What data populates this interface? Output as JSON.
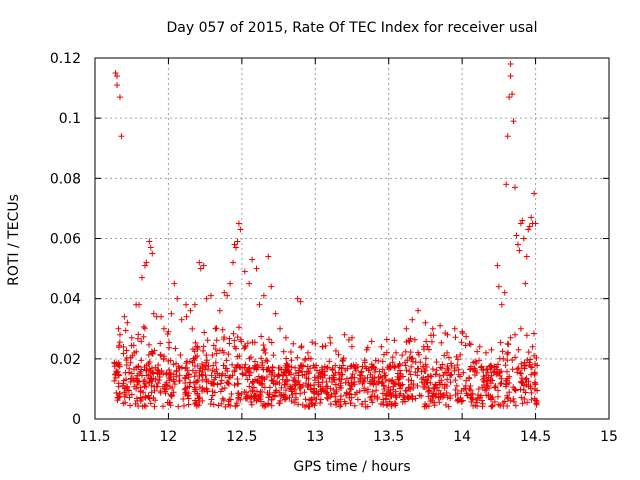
{
  "chart_data": {
    "type": "scatter",
    "title": "Day 057 of 2015, Rate Of TEC Index for receiver usal",
    "xlabel": "GPS time / hours",
    "ylabel": "ROTI / TECUs",
    "xlim": [
      11.5,
      15
    ],
    "ylim": [
      0,
      0.12
    ],
    "xticks": [
      11.5,
      12,
      12.5,
      13,
      13.5,
      14,
      14.5,
      15
    ],
    "xtick_labels": [
      "11.5",
      "12",
      "12.5",
      "13",
      "13.5",
      "14",
      "14.5",
      "15"
    ],
    "yticks": [
      0,
      0.02,
      0.04,
      0.06,
      0.08,
      0.1,
      0.12
    ],
    "ytick_labels": [
      "0",
      "0.02",
      "0.04",
      "0.06",
      "0.08",
      "0.1",
      "0.12"
    ],
    "grid": true,
    "marker": "+",
    "color": "#ee0000",
    "series": [
      {
        "name": "ROTI",
        "points": [
          [
            11.64,
            0.115
          ],
          [
            11.65,
            0.114
          ],
          [
            11.65,
            0.111
          ],
          [
            11.67,
            0.107
          ],
          [
            11.68,
            0.094
          ],
          [
            11.66,
            0.03
          ],
          [
            11.67,
            0.028
          ],
          [
            11.7,
            0.034
          ],
          [
            11.72,
            0.032
          ],
          [
            11.75,
            0.027
          ],
          [
            11.78,
            0.038
          ],
          [
            11.8,
            0.038
          ],
          [
            11.82,
            0.047
          ],
          [
            11.84,
            0.051
          ],
          [
            11.85,
            0.052
          ],
          [
            11.87,
            0.059
          ],
          [
            11.88,
            0.057
          ],
          [
            11.89,
            0.055
          ],
          [
            11.9,
            0.035
          ],
          [
            11.92,
            0.034
          ],
          [
            11.95,
            0.034
          ],
          [
            11.97,
            0.03
          ],
          [
            12.0,
            0.029
          ],
          [
            12.02,
            0.035
          ],
          [
            12.04,
            0.045
          ],
          [
            12.06,
            0.04
          ],
          [
            12.09,
            0.033
          ],
          [
            12.12,
            0.038
          ],
          [
            12.15,
            0.036
          ],
          [
            12.18,
            0.038
          ],
          [
            12.21,
            0.052
          ],
          [
            12.22,
            0.05
          ],
          [
            12.24,
            0.051
          ],
          [
            12.26,
            0.04
          ],
          [
            12.29,
            0.041
          ],
          [
            12.32,
            0.03
          ],
          [
            12.35,
            0.036
          ],
          [
            12.38,
            0.042
          ],
          [
            12.4,
            0.041
          ],
          [
            12.42,
            0.045
          ],
          [
            12.44,
            0.052
          ],
          [
            12.45,
            0.058
          ],
          [
            12.46,
            0.057
          ],
          [
            12.47,
            0.059
          ],
          [
            12.48,
            0.065
          ],
          [
            12.49,
            0.063
          ],
          [
            12.52,
            0.049
          ],
          [
            12.55,
            0.045
          ],
          [
            12.57,
            0.053
          ],
          [
            12.6,
            0.05
          ],
          [
            12.62,
            0.038
          ],
          [
            12.65,
            0.041
          ],
          [
            12.68,
            0.054
          ],
          [
            12.7,
            0.044
          ],
          [
            12.73,
            0.035
          ],
          [
            12.76,
            0.03
          ],
          [
            12.8,
            0.027
          ],
          [
            12.85,
            0.025
          ],
          [
            12.88,
            0.04
          ],
          [
            12.9,
            0.039
          ],
          [
            12.95,
            0.022
          ],
          [
            13.0,
            0.025
          ],
          [
            13.05,
            0.024
          ],
          [
            13.1,
            0.027
          ],
          [
            13.2,
            0.028
          ],
          [
            13.25,
            0.027
          ],
          [
            13.35,
            0.023
          ],
          [
            13.45,
            0.024
          ],
          [
            13.55,
            0.022
          ],
          [
            13.62,
            0.03
          ],
          [
            13.66,
            0.033
          ],
          [
            13.7,
            0.036
          ],
          [
            13.75,
            0.032
          ],
          [
            13.8,
            0.03
          ],
          [
            13.85,
            0.031
          ],
          [
            13.9,
            0.028
          ],
          [
            13.95,
            0.03
          ],
          [
            14.0,
            0.029
          ],
          [
            14.05,
            0.025
          ],
          [
            14.12,
            0.024
          ],
          [
            14.2,
            0.023
          ],
          [
            14.24,
            0.051
          ],
          [
            14.25,
            0.044
          ],
          [
            14.27,
            0.038
          ],
          [
            14.29,
            0.042
          ],
          [
            14.3,
            0.078
          ],
          [
            14.31,
            0.094
          ],
          [
            14.32,
            0.107
          ],
          [
            14.33,
            0.114
          ],
          [
            14.33,
            0.118
          ],
          [
            14.34,
            0.108
          ],
          [
            14.35,
            0.099
          ],
          [
            14.36,
            0.077
          ],
          [
            14.37,
            0.061
          ],
          [
            14.38,
            0.058
          ],
          [
            14.39,
            0.056
          ],
          [
            14.4,
            0.065
          ],
          [
            14.41,
            0.066
          ],
          [
            14.42,
            0.06
          ],
          [
            14.43,
            0.045
          ],
          [
            14.44,
            0.054
          ],
          [
            14.45,
            0.063
          ],
          [
            14.46,
            0.064
          ],
          [
            14.47,
            0.067
          ],
          [
            14.48,
            0.065
          ],
          [
            14.49,
            0.075
          ],
          [
            14.5,
            0.065
          ],
          [
            14.48,
            0.024
          ],
          [
            14.49,
            0.021
          ],
          [
            14.46,
            0.018
          ],
          [
            14.4,
            0.03
          ],
          [
            14.36,
            0.028
          ],
          [
            14.33,
            0.027
          ],
          [
            14.31,
            0.025
          ],
          [
            14.28,
            0.02
          ]
        ]
      }
    ]
  }
}
